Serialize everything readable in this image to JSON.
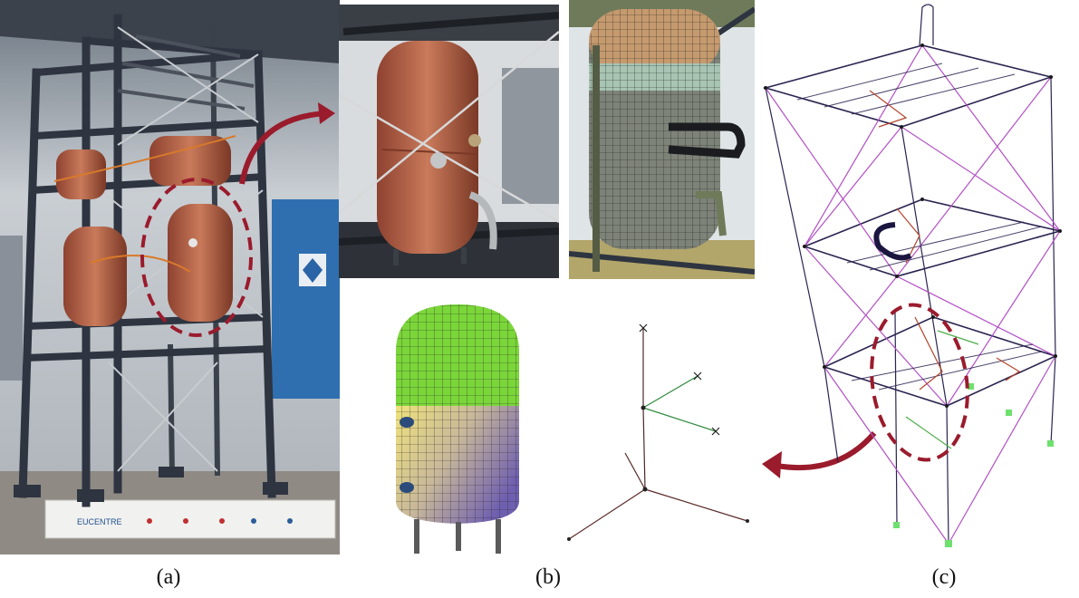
{
  "figure": {
    "captions": {
      "a": "(a)",
      "b": "(b)",
      "c": "(c)"
    },
    "colors": {
      "highlight_red": "#9a1b2c",
      "tank_copper": "#c06a4c",
      "steel_frame": "#2e3440",
      "mesh_green": "#7bd63a",
      "mesh_yellow": "#d8cc7a",
      "mesh_purple": "#7a64b4",
      "model_purple": "#b24fc4",
      "model_dark": "#2a2450"
    },
    "banner_logos": [
      "EUCENTRE"
    ]
  }
}
